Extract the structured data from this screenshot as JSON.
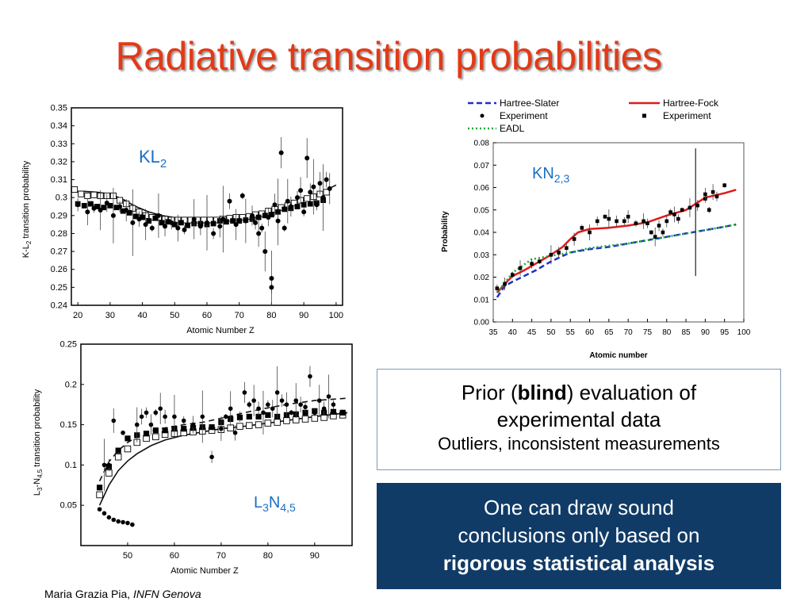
{
  "slide": {
    "title": "Radiative transition probabilities",
    "footer_author": "Maria Grazia Pia,",
    "footer_affiliation": "INFN Genova"
  },
  "box_prior": {
    "line1_before": "Prior (",
    "line1_bold": "blind",
    "line1_after": ") evaluation of",
    "line2": "experimental data",
    "line3": "Outliers, inconsistent measurements"
  },
  "box_conclusion": {
    "line1": "One can draw sound",
    "line2": "conclusions only based on",
    "line3_bold": "rigorous statistical analysis"
  },
  "colors": {
    "title": "#e23a17",
    "label_blue": "#1a6fc4",
    "hartree_slater": "#1f2fc9",
    "hartree_fock": "#e01a1a",
    "eadl": "#1ea83a",
    "conclusion_bg": "#103b67"
  },
  "chart_data": [
    {
      "type": "scatter",
      "label_main": "KL",
      "label_sub": "2",
      "ylabel_main": "K-L",
      "ylabel_sub": "2",
      "ylabel_rest": " transition probability",
      "xlabel": "Atomic Number Z",
      "xlim": [
        18,
        102
      ],
      "ylim": [
        0.24,
        0.35
      ],
      "xticks": [
        20,
        30,
        40,
        50,
        60,
        70,
        80,
        90,
        100
      ],
      "yticks": [
        0.24,
        0.25,
        0.26,
        0.27,
        0.28,
        0.29,
        0.3,
        0.31,
        0.32,
        0.33,
        0.34,
        0.35
      ],
      "series": [
        {
          "style": "solid",
          "x": [
            19,
            22,
            26,
            30,
            34,
            38,
            42,
            46,
            50,
            55,
            60,
            65,
            70,
            75,
            80,
            85,
            90,
            95,
            100
          ],
          "y": [
            0.3035,
            0.3035,
            0.303,
            0.302,
            0.299,
            0.295,
            0.292,
            0.29,
            0.2888,
            0.2883,
            0.2882,
            0.2885,
            0.289,
            0.2905,
            0.2925,
            0.295,
            0.2985,
            0.3025,
            0.307
          ]
        },
        {
          "style": "open-square",
          "x": [
            19,
            21,
            23,
            25,
            27,
            29,
            31,
            33,
            35,
            37,
            39,
            41,
            43,
            45,
            47,
            49,
            51,
            53,
            55,
            57,
            59,
            61,
            63,
            65,
            67,
            69,
            71,
            73,
            75,
            77,
            79,
            81,
            83,
            85,
            87,
            89,
            91,
            93,
            95,
            97
          ],
          "y": [
            0.3045,
            0.302,
            0.301,
            0.3015,
            0.301,
            0.301,
            0.301,
            0.2985,
            0.2965,
            0.294,
            0.292,
            0.29,
            0.289,
            0.289,
            0.288,
            0.2875,
            0.2875,
            0.2875,
            0.2875,
            0.2875,
            0.2875,
            0.2875,
            0.2875,
            0.288,
            0.2885,
            0.289,
            0.289,
            0.2895,
            0.2905,
            0.291,
            0.2925,
            0.2935,
            0.2945,
            0.2955,
            0.297,
            0.2985,
            0.2995,
            0.3005,
            0.302,
            0.303
          ]
        },
        {
          "style": "filled-square",
          "x": [
            20,
            22,
            24,
            26,
            28,
            30,
            32,
            34,
            36,
            38,
            40,
            42,
            44,
            46,
            48,
            50,
            52,
            54,
            56,
            58,
            60,
            62,
            64,
            66,
            68,
            70,
            72,
            74,
            76,
            78,
            80,
            82,
            84,
            86,
            88,
            90,
            92,
            94,
            96
          ],
          "y": [
            0.2965,
            0.2955,
            0.2965,
            0.295,
            0.2945,
            0.2955,
            0.2945,
            0.2925,
            0.2915,
            0.2895,
            0.289,
            0.287,
            0.2885,
            0.286,
            0.2865,
            0.285,
            0.286,
            0.2845,
            0.2855,
            0.2855,
            0.285,
            0.2855,
            0.287,
            0.2865,
            0.287,
            0.287,
            0.2875,
            0.288,
            0.289,
            0.29,
            0.2905,
            0.292,
            0.2935,
            0.294,
            0.295,
            0.296,
            0.2965,
            0.297,
            0.2985
          ]
        },
        {
          "style": "filled-circle",
          "x": [
            20,
            23,
            25,
            27,
            29,
            31,
            33,
            35,
            37,
            39,
            41,
            43,
            45,
            47,
            49,
            51,
            53,
            56,
            58,
            60,
            62,
            64,
            65,
            67,
            69,
            71,
            72,
            74,
            75,
            76,
            77,
            78,
            79,
            80,
            80,
            81,
            82,
            82,
            83,
            84,
            85,
            86,
            88,
            89,
            90,
            91,
            92,
            93,
            94,
            95,
            96,
            97,
            98
          ],
          "y": [
            0.296,
            0.292,
            0.294,
            0.293,
            0.297,
            0.29,
            0.295,
            0.293,
            0.286,
            0.288,
            0.285,
            0.283,
            0.29,
            0.284,
            0.286,
            0.283,
            0.282,
            0.288,
            0.284,
            0.286,
            0.28,
            0.284,
            0.288,
            0.298,
            0.285,
            0.301,
            0.287,
            0.29,
            0.286,
            0.28,
            0.283,
            0.27,
            0.289,
            0.255,
            0.25,
            0.296,
            0.292,
            0.287,
            0.325,
            0.283,
            0.298,
            0.295,
            0.3,
            0.304,
            0.292,
            0.322,
            0.303,
            0.306,
            0.296,
            0.308,
            0.3,
            0.31,
            0.305
          ]
        }
      ]
    },
    {
      "type": "line",
      "label_main": "KN",
      "label_sub": "2,3",
      "xlabel": "Atomic number",
      "ylabel": "Probability",
      "xlim": [
        35,
        100
      ],
      "ylim": [
        0.0,
        0.08
      ],
      "xticks": [
        "35",
        "40",
        "45",
        "50",
        "55",
        "60",
        "65",
        "70",
        "75",
        "80",
        "85",
        "90",
        "95",
        "100"
      ],
      "yticks": [
        "0.00",
        "0.01",
        "0.02",
        "0.03",
        "0.04",
        "0.05",
        "0.06",
        "0.07",
        "0.08"
      ],
      "legend": [
        "Hartree-Slater",
        "Hartree-Fock",
        "Experiment",
        "Experiment",
        "EADL"
      ],
      "series": [
        {
          "name": "Hartree-Slater",
          "style": "dashed",
          "x": [
            36,
            38,
            40,
            43,
            46,
            50,
            55,
            60,
            65,
            70,
            75,
            80,
            85,
            90,
            95,
            98
          ],
          "y": [
            0.011,
            0.016,
            0.018,
            0.0205,
            0.023,
            0.027,
            0.031,
            0.0325,
            0.0335,
            0.035,
            0.0365,
            0.038,
            0.0395,
            0.041,
            0.0425,
            0.0435
          ]
        },
        {
          "name": "Hartree-Fock",
          "style": "solid",
          "x": [
            36,
            38,
            40,
            43,
            46,
            50,
            53,
            55,
            57,
            60,
            65,
            70,
            75,
            80,
            85,
            90,
            95,
            98
          ],
          "y": [
            0.013,
            0.017,
            0.0205,
            0.023,
            0.026,
            0.03,
            0.0335,
            0.037,
            0.04,
            0.0415,
            0.042,
            0.043,
            0.0445,
            0.0475,
            0.05,
            0.0555,
            0.0575,
            0.059
          ]
        },
        {
          "name": "EADL",
          "style": "dotted",
          "x": [
            36,
            40,
            45,
            50,
            55,
            60,
            65,
            70,
            75,
            80,
            85,
            90,
            95,
            98
          ],
          "y": [
            0.013,
            0.022,
            0.028,
            0.0295,
            0.031,
            0.033,
            0.034,
            0.035,
            0.0365,
            0.038,
            0.0395,
            0.041,
            0.0425,
            0.0435
          ]
        },
        {
          "name": "Experiment",
          "style": "points",
          "x": [
            36,
            38,
            40,
            42,
            45,
            47,
            50,
            52,
            54,
            56,
            58,
            60,
            62,
            64,
            65,
            67,
            69,
            70,
            72,
            74,
            75,
            76,
            77,
            78,
            79,
            80,
            81,
            82,
            83,
            84,
            86,
            88,
            90,
            90,
            91,
            92,
            93,
            95
          ],
          "y": [
            0.015,
            0.017,
            0.021,
            0.024,
            0.026,
            0.027,
            0.03,
            0.031,
            0.033,
            0.037,
            0.042,
            0.04,
            0.045,
            0.047,
            0.046,
            0.045,
            0.045,
            0.047,
            0.044,
            0.045,
            0.044,
            0.04,
            0.038,
            0.043,
            0.04,
            0.045,
            0.049,
            0.048,
            0.046,
            0.05,
            0.051,
            0.052,
            0.055,
            0.057,
            0.05,
            0.058,
            0.056,
            0.061
          ]
        }
      ]
    },
    {
      "type": "scatter",
      "label_main": "L",
      "label_sub1": "3",
      "label_mid": "N",
      "label_sub2": "4,5",
      "ylabel_main": "L",
      "ylabel_sub1": "3",
      "ylabel_mid": "-N",
      "ylabel_sub2": "4,5",
      "ylabel_rest": " transition probability",
      "xlabel": "Atomic Number Z",
      "xlim": [
        40,
        98
      ],
      "ylim": [
        0.0,
        0.25
      ],
      "xticks": [
        50,
        60,
        70,
        80,
        90
      ],
      "yticks": [
        0.05,
        0.1,
        0.15,
        0.2,
        0.25
      ],
      "series": [
        {
          "style": "solid",
          "x": [
            44,
            46,
            48,
            50,
            52,
            55,
            58,
            62,
            66,
            70,
            75,
            80,
            85,
            90,
            97
          ],
          "y": [
            0.05,
            0.075,
            0.093,
            0.105,
            0.114,
            0.124,
            0.131,
            0.137,
            0.141,
            0.145,
            0.148,
            0.152,
            0.156,
            0.16,
            0.165
          ]
        },
        {
          "style": "dashed",
          "x": [
            44,
            46,
            48,
            50,
            52,
            55,
            58,
            62,
            66,
            70,
            75,
            80,
            85,
            90,
            97
          ],
          "y": [
            0.08,
            0.104,
            0.118,
            0.128,
            0.135,
            0.142,
            0.146,
            0.15,
            0.153,
            0.158,
            0.165,
            0.171,
            0.176,
            0.18,
            0.183
          ]
        },
        {
          "style": "open-square",
          "x": [
            44,
            46,
            48,
            50,
            52,
            54,
            56,
            58,
            60,
            62,
            64,
            66,
            68,
            70,
            72,
            74,
            76,
            78,
            80,
            82,
            84,
            86,
            88,
            90,
            92,
            94,
            96
          ],
          "y": [
            0.063,
            0.09,
            0.11,
            0.12,
            0.128,
            0.133,
            0.135,
            0.138,
            0.139,
            0.14,
            0.141,
            0.142,
            0.143,
            0.144,
            0.146,
            0.148,
            0.149,
            0.15,
            0.152,
            0.153,
            0.155,
            0.156,
            0.157,
            0.158,
            0.159,
            0.161,
            0.162
          ]
        },
        {
          "style": "filled-square",
          "x": [
            44,
            46,
            48,
            50,
            52,
            54,
            56,
            58,
            60,
            62,
            64,
            66,
            68,
            70,
            72,
            74,
            76,
            78,
            80,
            82,
            84,
            86,
            88,
            90,
            92,
            94,
            96
          ],
          "y": [
            0.072,
            0.098,
            0.118,
            0.133,
            0.137,
            0.139,
            0.143,
            0.143,
            0.145,
            0.145,
            0.146,
            0.147,
            0.147,
            0.153,
            0.157,
            0.159,
            0.16,
            0.16,
            0.162,
            0.16,
            0.162,
            0.163,
            0.165,
            0.167,
            0.165,
            0.166,
            0.165
          ]
        },
        {
          "style": "filled-circle",
          "x": [
            44,
            45,
            46,
            47,
            48,
            49,
            50,
            51,
            45,
            46,
            47,
            49,
            52,
            53,
            54,
            55,
            56,
            57,
            58,
            60,
            62,
            64,
            66,
            68,
            70,
            71,
            72,
            73,
            74,
            75,
            76,
            77,
            78,
            79,
            80,
            81,
            82,
            83,
            84,
            85,
            86,
            87,
            88,
            89,
            90,
            91,
            92,
            93,
            94
          ],
          "y": [
            0.045,
            0.04,
            0.035,
            0.032,
            0.03,
            0.029,
            0.028,
            0.026,
            0.1,
            0.1,
            0.155,
            0.14,
            0.15,
            0.16,
            0.165,
            0.15,
            0.165,
            0.17,
            0.16,
            0.16,
            0.155,
            0.15,
            0.16,
            0.11,
            0.145,
            0.16,
            0.17,
            0.14,
            0.16,
            0.19,
            0.175,
            0.18,
            0.17,
            0.165,
            0.175,
            0.17,
            0.19,
            0.18,
            0.175,
            0.165,
            0.18,
            0.175,
            0.172,
            0.21,
            0.165,
            0.18,
            0.17,
            0.185,
            0.175
          ]
        }
      ]
    }
  ]
}
